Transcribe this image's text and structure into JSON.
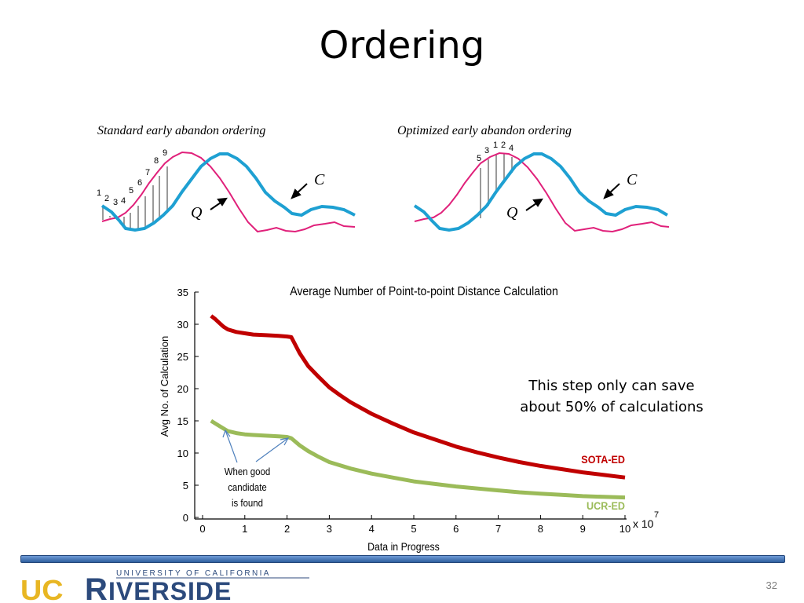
{
  "slide": {
    "title": "Ordering",
    "note_line1": "This step only can save",
    "note_line2": "about 50% of calculations",
    "page_number": "32",
    "logo": {
      "main_u": "UC",
      "main_r": "R",
      "main_rest": "IVERSIDE",
      "tagline": "UNIVERSITY OF CALIFORNIA"
    }
  },
  "diagrams": {
    "left": {
      "caption": "Standard early abandon ordering",
      "numbers": [
        "1",
        "2",
        "3",
        "4",
        "5",
        "6",
        "7",
        "8",
        "9"
      ],
      "label_q": "Q",
      "label_c": "C"
    },
    "right": {
      "caption": "Optimized early abandon ordering",
      "numbers": [
        "5",
        "3",
        "1",
        "2",
        "4"
      ],
      "label_q": "Q",
      "label_c": "C"
    },
    "colors": {
      "query": "#e0207a",
      "candidate": "#1ea0d2",
      "hatch": "#9a9a9a"
    }
  },
  "chart_data": {
    "type": "line",
    "title": "Average Number of Point-to-point Distance Calculation",
    "xlabel": "Data in Progress",
    "ylabel": "Avg No. of Calculation",
    "x_multiplier": "x 10",
    "x_multiplier_exp": "7",
    "xlim": [
      0,
      10
    ],
    "ylim": [
      0,
      35
    ],
    "xticks": [
      "0",
      "1",
      "2",
      "3",
      "4",
      "5",
      "6",
      "7",
      "8",
      "9",
      "10"
    ],
    "yticks": [
      "0",
      "5",
      "10",
      "15",
      "20",
      "25",
      "30",
      "35"
    ],
    "series": [
      {
        "name": "SOTA-ED",
        "color": "#c00000",
        "x": [
          0.2,
          0.3,
          0.4,
          0.5,
          0.6,
          0.8,
          1.0,
          1.2,
          1.5,
          1.8,
          2.0,
          2.1,
          2.3,
          2.5,
          2.75,
          3.0,
          3.25,
          3.5,
          4.0,
          4.5,
          5.0,
          5.5,
          6.0,
          6.5,
          7.0,
          7.5,
          8.0,
          8.5,
          9.0,
          9.5,
          10.0
        ],
        "y": [
          31.3,
          30.8,
          30.2,
          29.6,
          29.2,
          28.8,
          28.6,
          28.4,
          28.3,
          28.2,
          28.1,
          28.0,
          25.5,
          23.5,
          21.8,
          20.2,
          19.0,
          17.9,
          16.1,
          14.6,
          13.2,
          12.1,
          11.0,
          10.1,
          9.3,
          8.6,
          8.0,
          7.5,
          7.0,
          6.6,
          6.2
        ]
      },
      {
        "name": "UCR-ED",
        "color": "#9bbb59",
        "x": [
          0.2,
          0.4,
          0.6,
          0.8,
          1.0,
          1.2,
          1.5,
          1.8,
          2.0,
          2.1,
          2.3,
          2.5,
          2.75,
          3.0,
          3.5,
          4.0,
          4.5,
          5.0,
          5.5,
          6.0,
          6.5,
          7.0,
          7.5,
          8.0,
          8.5,
          9.0,
          9.5,
          10.0
        ],
        "y": [
          15.0,
          14.2,
          13.4,
          13.1,
          12.9,
          12.8,
          12.7,
          12.6,
          12.5,
          12.3,
          11.2,
          10.3,
          9.4,
          8.6,
          7.6,
          6.8,
          6.2,
          5.6,
          5.2,
          4.8,
          4.5,
          4.2,
          3.9,
          3.7,
          3.5,
          3.3,
          3.2,
          3.1
        ]
      }
    ],
    "annotation": {
      "line1": "When good",
      "line2": "candidate",
      "line3": "is found"
    }
  }
}
